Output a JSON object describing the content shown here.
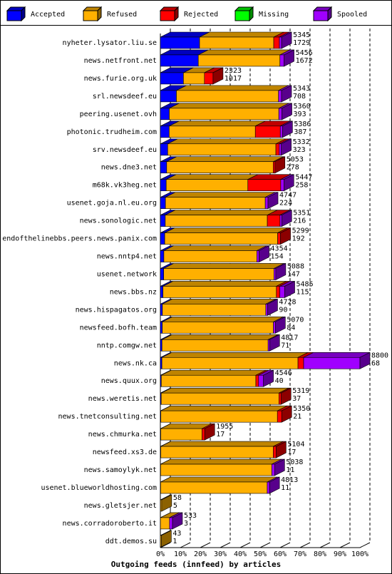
{
  "chart_data": {
    "type": "bar3d-stacked-horizontal",
    "xlabel": "Outgoing feeds (innfeed) by articles",
    "categories": [
      "nyheter.lysator.liu.se",
      "news.netfront.net",
      "news.furie.org.uk",
      "srl.newsdeef.eu",
      "peering.usenet.ovh",
      "photonic.trudheim.com",
      "srv.newsdeef.eu",
      "news.dne3.net",
      "m68k.vk3heg.net",
      "usenet.goja.nl.eu.org",
      "news.sonologic.net",
      "endofthelinebbs.peers.news.panix.com",
      "news.nntp4.net",
      "usenet.network",
      "news.bbs.nz",
      "news.hispagatos.org",
      "newsfeed.bofh.team",
      "nntp.comgw.net",
      "news.nk.ca",
      "news.quux.org",
      "news.weretis.net",
      "news.tnetconsulting.net",
      "news.chmurka.net",
      "newsfeed.xs3.de",
      "news.samoylyk.net",
      "usenet.blueworldhosting.com",
      "news.gletsjer.net",
      "news.corradoroberto.it",
      "ddt.demos.su"
    ],
    "offered": [
      5345,
      5456,
      2323,
      5343,
      5360,
      5386,
      5332,
      5053,
      5447,
      4747,
      5351,
      5299,
      4354,
      5088,
      5485,
      4728,
      5070,
      4817,
      8800,
      4546,
      5319,
      5350,
      1955,
      5104,
      5038,
      4813,
      58,
      533,
      43
    ],
    "series": [
      {
        "name": "Accepted",
        "color": "#0000ff",
        "values": [
          1729,
          1672,
          1017,
          708,
          393,
          387,
          323,
          278,
          258,
          224,
          216,
          192,
          154,
          147,
          115,
          90,
          84,
          71,
          68,
          40,
          37,
          21,
          17,
          17,
          11,
          11,
          5,
          3,
          1
        ]
      },
      {
        "name": "Refused",
        "color": "#ffb000",
        "values": [
          3270,
          3600,
          926,
          4500,
          4830,
          3800,
          4770,
          4700,
          3600,
          4400,
          4500,
          4980,
          4100,
          4860,
          5000,
          4560,
          4900,
          4680,
          6000,
          4170,
          5190,
          5140,
          1820,
          4960,
          4900,
          4700,
          53,
          400,
          42
        ]
      },
      {
        "name": "Rejected",
        "color": "#ff0000",
        "values": [
          250,
          0,
          380,
          0,
          0,
          1100,
          150,
          75,
          1450,
          0,
          560,
          127,
          0,
          0,
          150,
          0,
          0,
          0,
          250,
          120,
          92,
          189,
          118,
          127,
          0,
          0,
          0,
          0,
          0
        ]
      },
      {
        "name": "Missing",
        "color": "#00ff00",
        "values": [
          0,
          0,
          0,
          0,
          0,
          0,
          0,
          0,
          0,
          0,
          0,
          0,
          0,
          0,
          0,
          0,
          0,
          0,
          0,
          0,
          0,
          0,
          0,
          0,
          0,
          0,
          0,
          0,
          0
        ]
      },
      {
        "name": "Spooled",
        "color": "#a000ff",
        "values": [
          96,
          184,
          0,
          135,
          137,
          99,
          89,
          0,
          139,
          123,
          75,
          0,
          100,
          81,
          220,
          78,
          86,
          66,
          2482,
          216,
          0,
          0,
          0,
          0,
          127,
          102,
          0,
          130,
          0
        ]
      }
    ],
    "xlim": [
      0,
      8800
    ],
    "xticks": [
      {
        "value": 0,
        "label": "0%"
      },
      {
        "value": 880,
        "label": "10%"
      },
      {
        "value": 1760,
        "label": "20%"
      },
      {
        "value": 2640,
        "label": "30%"
      },
      {
        "value": 3520,
        "label": "40%"
      },
      {
        "value": 4400,
        "label": "50%"
      },
      {
        "value": 5280,
        "label": "60%"
      },
      {
        "value": 6160,
        "label": "70%"
      },
      {
        "value": 7040,
        "label": "80%"
      },
      {
        "value": 7920,
        "label": "90%"
      },
      {
        "value": 8800,
        "label": "100%"
      }
    ],
    "grid": true,
    "legend": "top"
  }
}
